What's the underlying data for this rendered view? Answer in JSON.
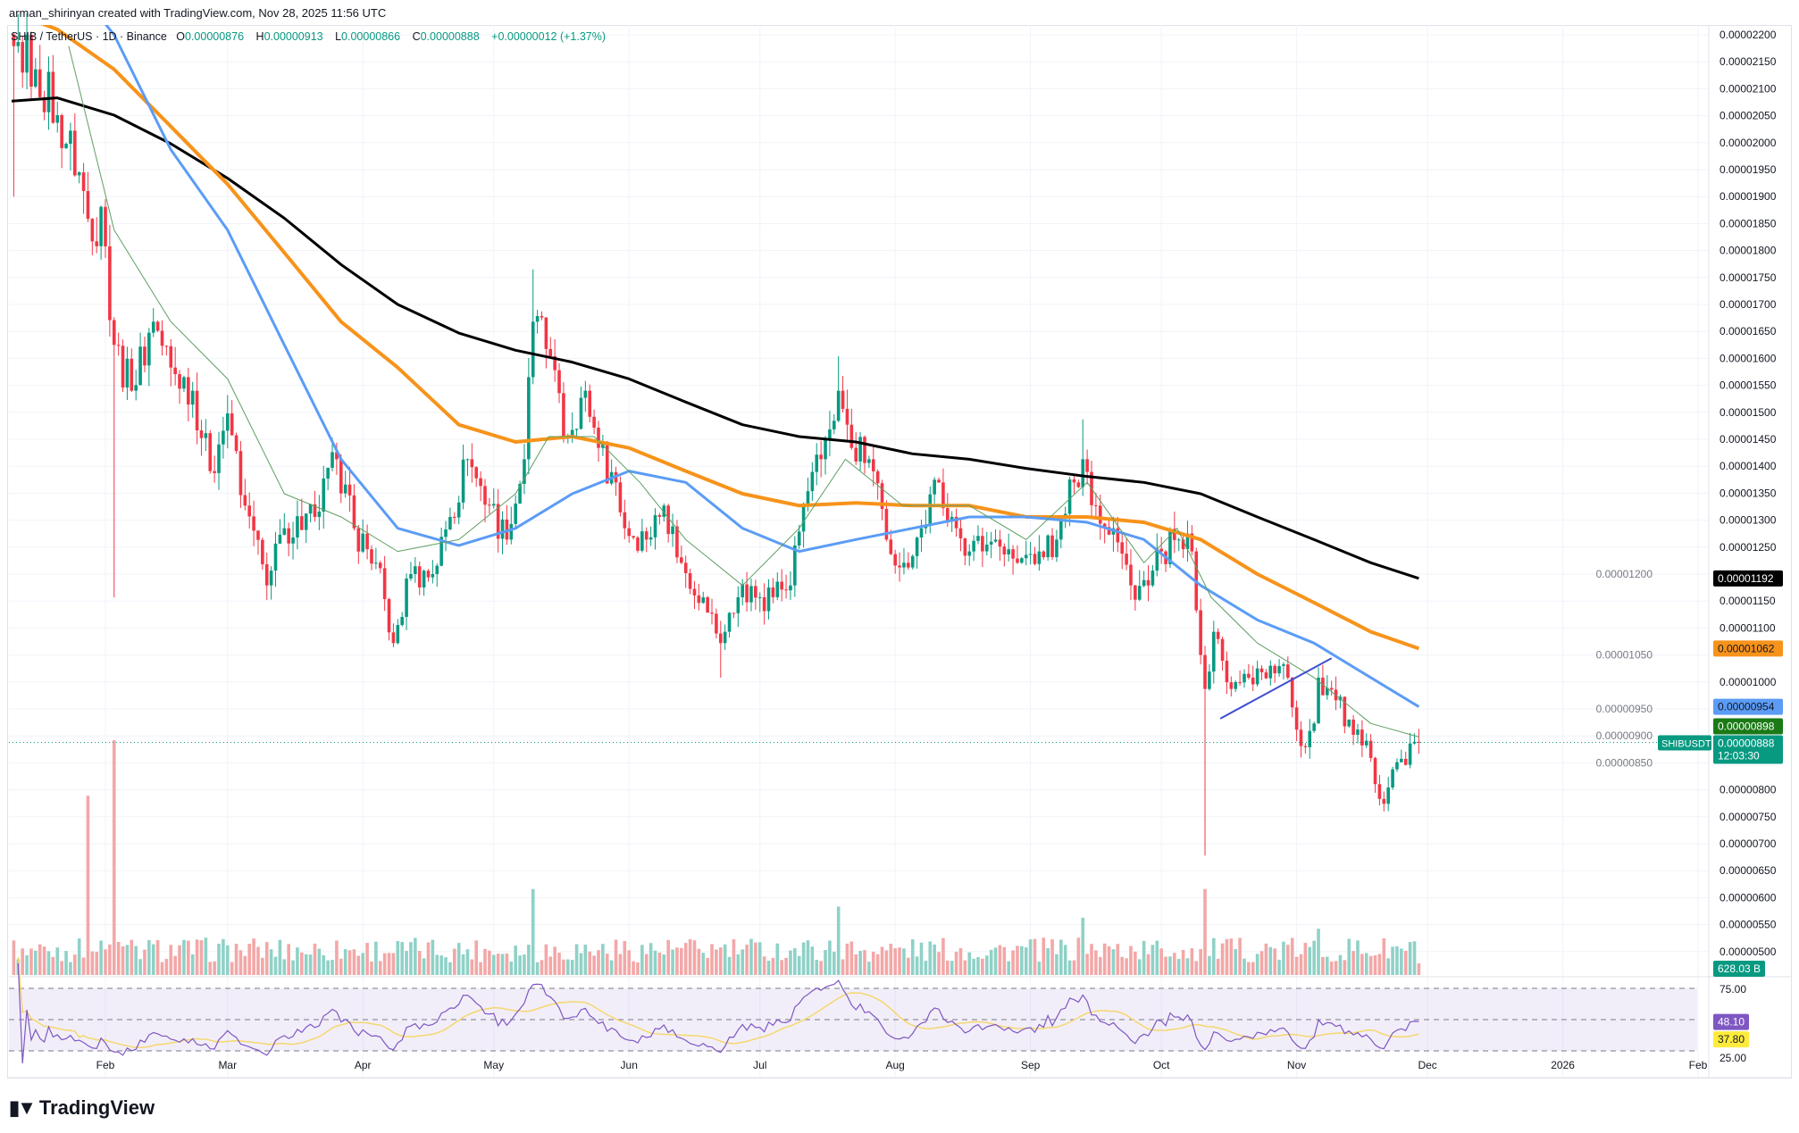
{
  "header": {
    "credit": "arman_shirinyan created with TradingView.com, Nov 28, 2025 11:56 UTC"
  },
  "legend": {
    "symbol": "SHIB / TetherUS · 1D · Binance",
    "o_label": "O",
    "o": "0.00000876",
    "h_label": "H",
    "h": "0.00000913",
    "l_label": "L",
    "l": "0.00000866",
    "c_label": "C",
    "c": "0.00000888",
    "change": "+0.00000012 (+1.37%)"
  },
  "badges": {
    "ma200": "0.00001192",
    "ma100": "0.00001062",
    "ma50": "0.00000954",
    "ma20": "0.00000898",
    "last": "0.00000888",
    "countdown": "12:03:30",
    "symbol": "SHIBUSDT",
    "volume": "628.03 B",
    "rsi": "48.10",
    "rsi_ma": "37.80"
  },
  "colors": {
    "up": "#089981",
    "down": "#f23645",
    "ma200": "#000000",
    "ma100": "#f7931a",
    "ma50": "#5b9cf6",
    "ma20": "#5f9e61",
    "rsi": "#7e57c2",
    "rsi_ma": "#f5d76e",
    "trend": "#3f4ed0"
  },
  "logo": "TradingView",
  "chart_data": {
    "type": "candlestick",
    "title": "SHIB / TetherUS · 1D · Binance",
    "price_unit": "1e-8 USDT",
    "ylim": [
      480,
      2230
    ],
    "yticks": [
      "0.00002200",
      "0.00002150",
      "0.00002100",
      "0.00002050",
      "0.00002000",
      "0.00001950",
      "0.00001900",
      "0.00001850",
      "0.00001800",
      "0.00001750",
      "0.00001700",
      "0.00001650",
      "0.00001600",
      "0.00001550",
      "0.00001500",
      "0.00001450",
      "0.00001400",
      "0.00001350",
      "0.00001300",
      "0.00001250",
      "0.00001200",
      "0.00001150",
      "0.00001100",
      "0.00001050",
      "0.00001000",
      "0.00000950",
      "0.00000900",
      "0.00000850",
      "0.00000800",
      "0.00000750",
      "0.00000700",
      "0.00000650",
      "0.00000600",
      "0.00000550",
      "0.00000500"
    ],
    "xticks": [
      {
        "label": "Feb",
        "day": 31
      },
      {
        "label": "Mar",
        "day": 59
      },
      {
        "label": "Apr",
        "day": 90
      },
      {
        "label": "May",
        "day": 120
      },
      {
        "label": "Jun",
        "day": 151
      },
      {
        "label": "Jul",
        "day": 181
      },
      {
        "label": "Aug",
        "day": 212
      },
      {
        "label": "Sep",
        "day": 243
      },
      {
        "label": "Oct",
        "day": 273
      },
      {
        "label": "Nov",
        "day": 304
      },
      {
        "label": "Dec",
        "day": 334
      },
      {
        "label": "2026",
        "day": 365
      },
      {
        "label": "Feb",
        "day": 396
      }
    ],
    "close_anchors": [
      [
        10,
        2179
      ],
      [
        15,
        2136
      ],
      [
        20,
        2051
      ],
      [
        25,
        1945
      ],
      [
        28,
        1817
      ],
      [
        30,
        1881
      ],
      [
        33,
        1625
      ],
      [
        37,
        1540
      ],
      [
        42,
        1668
      ],
      [
        46,
        1583
      ],
      [
        51,
        1540
      ],
      [
        55,
        1391
      ],
      [
        59,
        1498
      ],
      [
        63,
        1327
      ],
      [
        68,
        1179
      ],
      [
        72,
        1285
      ],
      [
        79,
        1306
      ],
      [
        84,
        1413
      ],
      [
        88,
        1285
      ],
      [
        93,
        1221
      ],
      [
        97,
        1072
      ],
      [
        101,
        1200
      ],
      [
        106,
        1200
      ],
      [
        110,
        1306
      ],
      [
        114,
        1413
      ],
      [
        119,
        1327
      ],
      [
        123,
        1264
      ],
      [
        127,
        1413
      ],
      [
        129,
        1668
      ],
      [
        133,
        1604
      ],
      [
        136,
        1455
      ],
      [
        141,
        1540
      ],
      [
        144,
        1434
      ],
      [
        148,
        1370
      ],
      [
        150,
        1285
      ],
      [
        155,
        1264
      ],
      [
        159,
        1327
      ],
      [
        163,
        1221
      ],
      [
        168,
        1157
      ],
      [
        172,
        1072
      ],
      [
        176,
        1157
      ],
      [
        181,
        1157
      ],
      [
        188,
        1179
      ],
      [
        191,
        1327
      ],
      [
        195,
        1413
      ],
      [
        199,
        1540
      ],
      [
        202,
        1434
      ],
      [
        206,
        1413
      ],
      [
        210,
        1264
      ],
      [
        214,
        1221
      ],
      [
        218,
        1285
      ],
      [
        222,
        1370
      ],
      [
        226,
        1285
      ],
      [
        229,
        1242
      ],
      [
        235,
        1264
      ],
      [
        240,
        1221
      ],
      [
        245,
        1242
      ],
      [
        249,
        1264
      ],
      [
        253,
        1370
      ],
      [
        255,
        1413
      ],
      [
        258,
        1327
      ],
      [
        262,
        1285
      ],
      [
        266,
        1179
      ],
      [
        270,
        1179
      ],
      [
        273,
        1242
      ],
      [
        277,
        1264
      ],
      [
        280,
        1242
      ],
      [
        283,
        987
      ],
      [
        285,
        1093
      ],
      [
        289,
        987
      ],
      [
        293,
        1008
      ],
      [
        298,
        1030
      ],
      [
        302,
        1008
      ],
      [
        305,
        881
      ],
      [
        308,
        923
      ],
      [
        309,
        1008
      ],
      [
        313,
        966
      ],
      [
        317,
        902
      ],
      [
        321,
        859
      ],
      [
        324,
        774
      ],
      [
        326,
        838
      ],
      [
        332,
        888
      ]
    ],
    "wicks": [
      [
        10,
        "low",
        1900
      ],
      [
        33,
        "low",
        1157
      ],
      [
        129,
        "high",
        1765
      ],
      [
        172,
        "low",
        1008
      ],
      [
        199,
        "high",
        1604
      ],
      [
        255,
        "high",
        1487
      ],
      [
        283,
        "low",
        678
      ],
      [
        324,
        "low",
        760
      ],
      [
        332,
        "high",
        913
      ]
    ],
    "ma_lines": [
      {
        "name": "MA 200",
        "key": "ma200",
        "points": [
          [
            9.5,
            2077
          ],
          [
            20,
            2083
          ],
          [
            33,
            2051
          ],
          [
            46,
            1998
          ],
          [
            59,
            1934
          ],
          [
            72,
            1860
          ],
          [
            85,
            1774
          ],
          [
            98,
            1700
          ],
          [
            112,
            1647
          ],
          [
            125,
            1615
          ],
          [
            138,
            1593
          ],
          [
            151,
            1562
          ],
          [
            164,
            1519
          ],
          [
            177,
            1477
          ],
          [
            190,
            1455
          ],
          [
            203,
            1445
          ],
          [
            216,
            1423
          ],
          [
            229,
            1413
          ],
          [
            242,
            1396
          ],
          [
            256,
            1381
          ],
          [
            269,
            1370
          ],
          [
            282,
            1349
          ],
          [
            295,
            1306
          ],
          [
            308,
            1264
          ],
          [
            321,
            1221
          ],
          [
            332,
            1192
          ]
        ]
      },
      {
        "name": "MA 100",
        "key": "ma100",
        "points": [
          [
            9.5,
            2242
          ],
          [
            20,
            2210
          ],
          [
            33,
            2136
          ],
          [
            46,
            2030
          ],
          [
            59,
            1923
          ],
          [
            72,
            1796
          ],
          [
            85,
            1668
          ],
          [
            98,
            1583
          ],
          [
            112,
            1477
          ],
          [
            125,
            1445
          ],
          [
            138,
            1455
          ],
          [
            151,
            1434
          ],
          [
            164,
            1391
          ],
          [
            177,
            1349
          ],
          [
            190,
            1327
          ],
          [
            203,
            1332
          ],
          [
            216,
            1327
          ],
          [
            229,
            1327
          ],
          [
            242,
            1306
          ],
          [
            256,
            1306
          ],
          [
            269,
            1296
          ],
          [
            282,
            1264
          ],
          [
            295,
            1200
          ],
          [
            308,
            1147
          ],
          [
            321,
            1093
          ],
          [
            332,
            1062
          ]
        ]
      },
      {
        "name": "MA 50",
        "key": "ma50",
        "points": [
          [
            30,
            2230
          ],
          [
            33,
            2200
          ],
          [
            46,
            1987
          ],
          [
            59,
            1838
          ],
          [
            72,
            1625
          ],
          [
            85,
            1413
          ],
          [
            98,
            1285
          ],
          [
            112,
            1253
          ],
          [
            125,
            1285
          ],
          [
            138,
            1349
          ],
          [
            151,
            1391
          ],
          [
            164,
            1370
          ],
          [
            177,
            1285
          ],
          [
            190,
            1242
          ],
          [
            203,
            1264
          ],
          [
            216,
            1285
          ],
          [
            229,
            1306
          ],
          [
            242,
            1306
          ],
          [
            256,
            1296
          ],
          [
            269,
            1264
          ],
          [
            282,
            1179
          ],
          [
            295,
            1115
          ],
          [
            308,
            1072
          ],
          [
            321,
            1008
          ],
          [
            332,
            954
          ]
        ]
      },
      {
        "name": "MA 20",
        "key": "ma20",
        "points": [
          [
            22.6,
            2179
          ],
          [
            33,
            1838
          ],
          [
            46,
            1668
          ],
          [
            59,
            1562
          ],
          [
            72,
            1349
          ],
          [
            85,
            1306
          ],
          [
            98,
            1242
          ],
          [
            112,
            1264
          ],
          [
            125,
            1349
          ],
          [
            132.6,
            1455
          ],
          [
            143,
            1455
          ],
          [
            153.5,
            1370
          ],
          [
            164,
            1264
          ],
          [
            177,
            1179
          ],
          [
            190,
            1285
          ],
          [
            200.6,
            1413
          ],
          [
            213.7,
            1327
          ],
          [
            229,
            1327
          ],
          [
            242,
            1264
          ],
          [
            256,
            1370
          ],
          [
            269,
            1221
          ],
          [
            276.6,
            1285
          ],
          [
            284.4,
            1157
          ],
          [
            295,
            1072
          ],
          [
            308,
            1008
          ],
          [
            321,
            923
          ],
          [
            332,
            898
          ]
        ]
      }
    ],
    "trendline": [
      [
        286.5,
        932
      ],
      [
        312,
        1044
      ]
    ],
    "last_price": 888,
    "volume": {
      "unit": "B",
      "base": 1500,
      "last": 628.03,
      "spikes": [
        [
          27,
          9700
        ],
        [
          33,
          12700
        ],
        [
          129,
          4650
        ],
        [
          199,
          3700
        ],
        [
          255,
          3100
        ],
        [
          283,
          4650
        ],
        [
          309,
          2500
        ],
        [
          332,
          628
        ]
      ]
    },
    "rsi": {
      "period": 14,
      "levels": [
        75,
        50,
        25
      ],
      "level_labels": [
        "75.00",
        "25.00"
      ],
      "value": 48.1,
      "ma_value": 37.8
    }
  }
}
